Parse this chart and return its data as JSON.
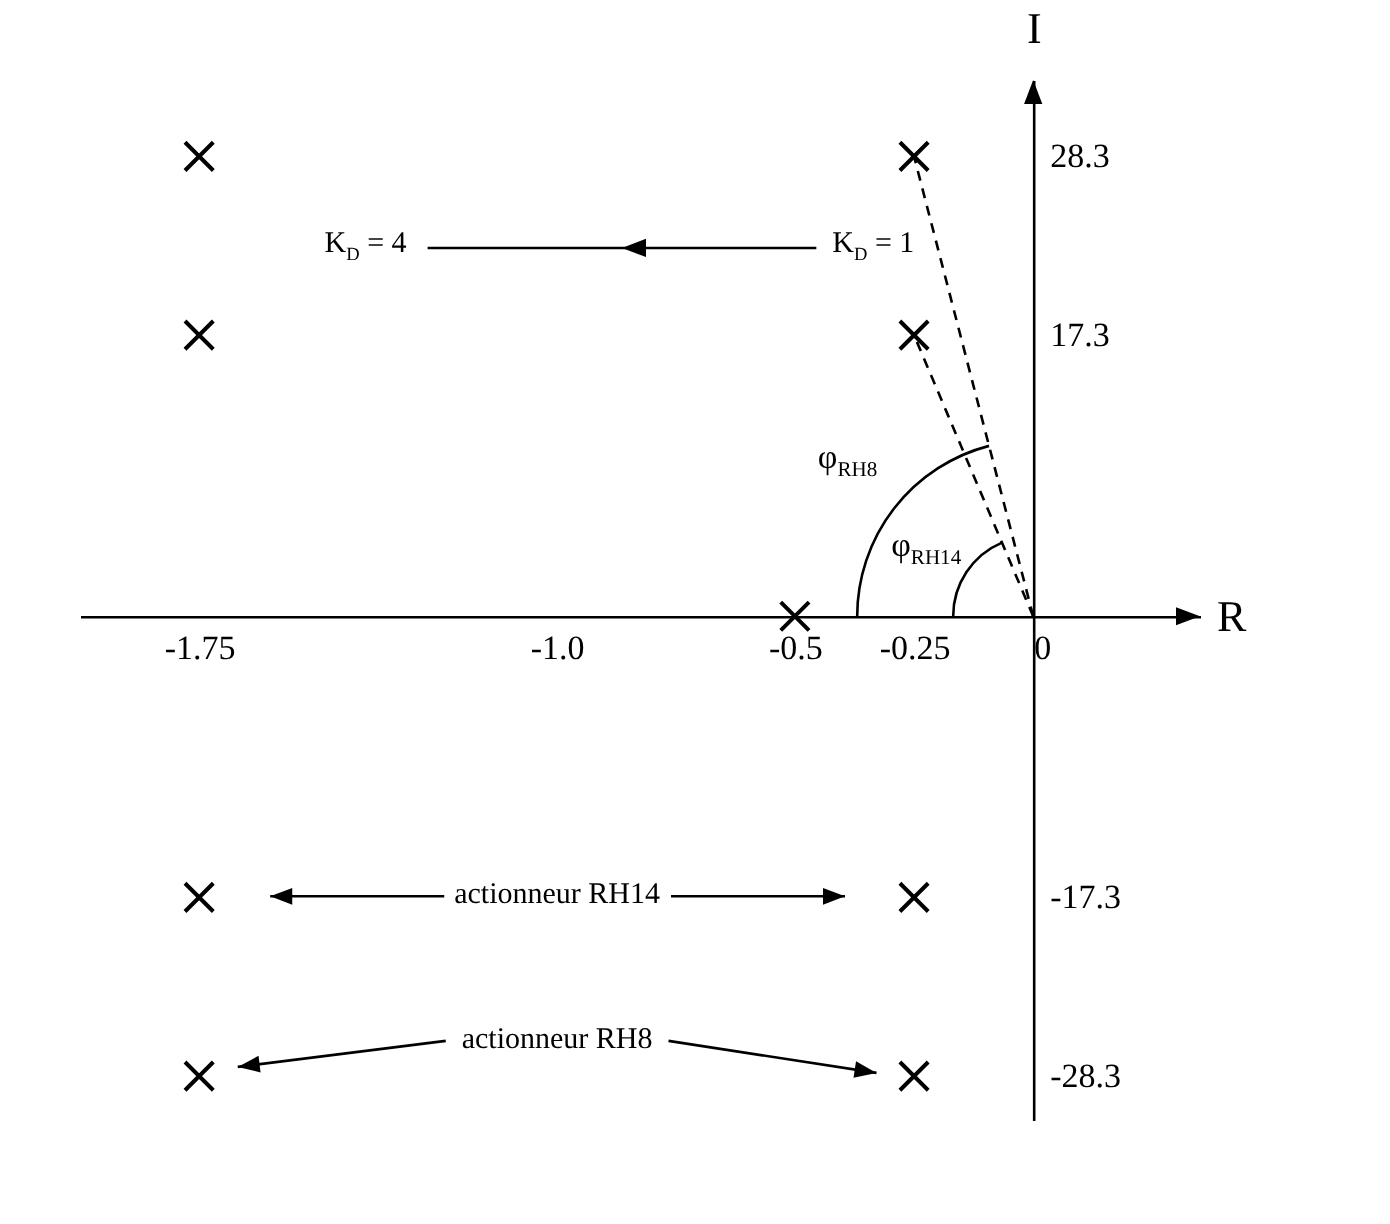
{
  "chart_data": {
    "type": "scatter",
    "xlabel": "R",
    "ylabel": "I",
    "xlim": [
      -2.0,
      0.35
    ],
    "ylim": [
      -31,
      33
    ],
    "xticks": [
      -1.75,
      {
        "value": -1,
        "label": "-1.0"
      },
      -0.5,
      -0.25,
      0
    ],
    "yticks": [
      -28.3,
      -17.3,
      17.3,
      28.3
    ],
    "grid": false,
    "legend": false,
    "marker": "cross",
    "series": [
      {
        "color": "#000000",
        "x": [
          -1.75,
          -0.25,
          -1.75,
          -0.25,
          -0.5,
          -1.75,
          -0.25,
          -1.75,
          -0.25
        ],
        "values": [
          28.3,
          28.3,
          17.3,
          17.3,
          0,
          -17.3,
          -17.3,
          -28.3,
          -28.3
        ]
      },
      {
        "type": "line",
        "color": "#000000",
        "line_style": "dashed",
        "marker": "none",
        "x": [
          0,
          -0.25
        ],
        "values": [
          0,
          28.3
        ]
      },
      {
        "type": "line",
        "color": "#000000",
        "line_style": "dashed",
        "marker": "none",
        "x": [
          0,
          -0.25
        ],
        "values": [
          0,
          17.3
        ]
      }
    ],
    "annotations": [
      "K$_{D}$ = 4",
      "K$_{D}$ = 1",
      "φ$_{RH8}$",
      "φ$_{RH14}$",
      "actionneur RH14",
      "actionneur RH8"
    ]
  }
}
